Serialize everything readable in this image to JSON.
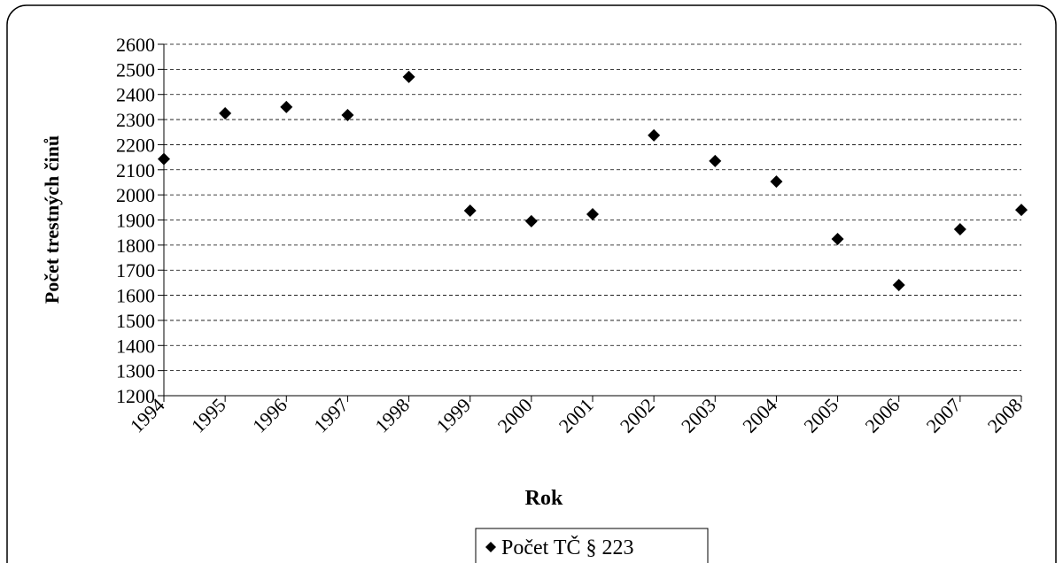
{
  "chart_data": {
    "type": "scatter",
    "x_label": "Rok",
    "y_label": "Počet trestných činů",
    "categories": [
      "1994",
      "1995",
      "1996",
      "1997",
      "1998",
      "1999",
      "2000",
      "2001",
      "2002",
      "2003",
      "2004",
      "2005",
      "2006",
      "2007",
      "2008"
    ],
    "series": [
      {
        "name": "Počet TČ § 223",
        "color": "#000000",
        "values": [
          2143,
          2325,
          2350,
          2318,
          2470,
          1937,
          1895,
          1923,
          2237,
          2135,
          2053,
          1824,
          1641,
          1863,
          1940
        ]
      }
    ],
    "ylim": [
      1200,
      2600
    ],
    "yticks": [
      1200,
      1300,
      1400,
      1500,
      1600,
      1700,
      1800,
      1900,
      2000,
      2100,
      2200,
      2300,
      2400,
      2500,
      2600
    ],
    "grid": true,
    "legend": "bottom"
  }
}
